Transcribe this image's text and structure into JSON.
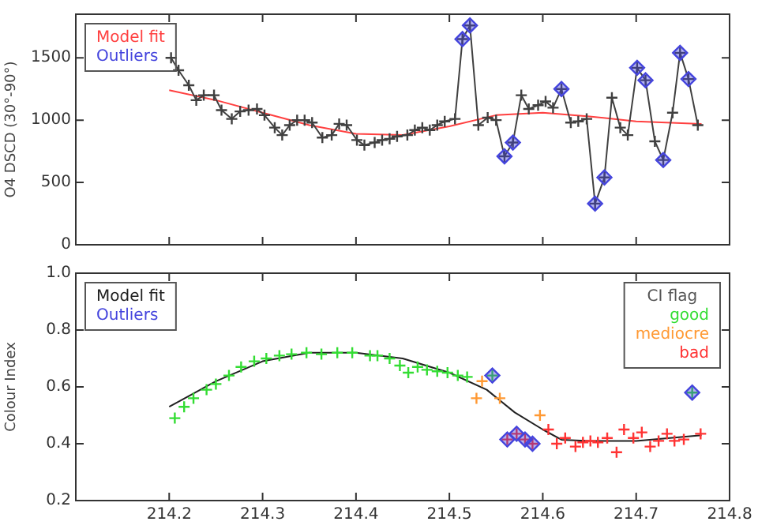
{
  "chart_data": [
    {
      "type": "line",
      "ylabel": "O4 DSCD (30°-90°)",
      "xlim": [
        214.1,
        214.8
      ],
      "xticks": [
        214.2,
        214.3,
        214.4,
        214.5,
        214.6,
        214.7,
        214.8
      ],
      "ylim": [
        0,
        1850
      ],
      "yticks": [
        0,
        500,
        1000,
        1500
      ],
      "tick_labels": "y",
      "legend": "top left",
      "series": [
        {
          "color": "#404040",
          "marker": "cross",
          "x": [
            214.202,
            214.21,
            214.221,
            214.229,
            214.237,
            214.248,
            214.256,
            214.267,
            214.276,
            214.285,
            214.294,
            214.302,
            214.313,
            214.321,
            214.329,
            214.337,
            214.345,
            214.353,
            214.364,
            214.374,
            214.382,
            214.39,
            214.401,
            214.409,
            214.42,
            214.428,
            214.436,
            214.444,
            214.455,
            214.463,
            214.471,
            214.479,
            214.487,
            214.495,
            214.506,
            214.514,
            214.522,
            214.531,
            214.541,
            214.55,
            214.559,
            214.568,
            214.577,
            214.585,
            214.595,
            214.603,
            214.611,
            214.62,
            214.63,
            214.638,
            214.647,
            214.656,
            214.666,
            214.674,
            214.683,
            214.691,
            214.701,
            214.71,
            214.72,
            214.729,
            214.739,
            214.747,
            214.756,
            214.766
          ],
          "values": [
            1500,
            1400,
            1280,
            1160,
            1200,
            1200,
            1080,
            1010,
            1070,
            1080,
            1090,
            1040,
            940,
            880,
            960,
            1000,
            1000,
            980,
            860,
            880,
            970,
            960,
            840,
            800,
            820,
            840,
            850,
            870,
            880,
            920,
            940,
            920,
            960,
            990,
            1010,
            1650,
            1760,
            960,
            1020,
            1000,
            710,
            820,
            1200,
            1090,
            1120,
            1150,
            1100,
            1250,
            980,
            990,
            1010,
            330,
            540,
            1180,
            940,
            880,
            1420,
            1320,
            830,
            680,
            1060,
            1540,
            1330,
            960
          ]
        },
        {
          "name": "Model fit",
          "color": "#ff4040",
          "marker": "none",
          "x": [
            214.2,
            214.25,
            214.3,
            214.35,
            214.4,
            214.45,
            214.5,
            214.55,
            214.6,
            214.65,
            214.7,
            214.77
          ],
          "values": [
            1240,
            1160,
            1060,
            960,
            890,
            880,
            950,
            1040,
            1060,
            1030,
            990,
            970
          ]
        },
        {
          "type": "scatter",
          "name": "Outliers",
          "color": "#4444dd",
          "marker": "diamond",
          "x": [
            214.514,
            214.522,
            214.559,
            214.568,
            214.62,
            214.656,
            214.666,
            214.701,
            214.71,
            214.729,
            214.747,
            214.756
          ],
          "values": [
            1650,
            1760,
            710,
            820,
            1250,
            330,
            540,
            1420,
            1320,
            680,
            1540,
            1330
          ]
        }
      ]
    },
    {
      "type": "scatter",
      "ylabel": "Colour Index",
      "xlim": [
        214.1,
        214.8
      ],
      "xticks": [
        214.2,
        214.3,
        214.4,
        214.5,
        214.6,
        214.7,
        214.8
      ],
      "ylim": [
        0.2,
        1.0
      ],
      "yticks": [
        0.2,
        0.4,
        0.6,
        0.8,
        {
          "value": 1,
          "label": "1.0"
        }
      ],
      "legend": "top right",
      "legend_title": "CI flag",
      "series": [
        {
          "type": "line",
          "name": "Model fit",
          "color": "#202020",
          "marker": "none",
          "x": [
            214.2,
            214.25,
            214.3,
            214.35,
            214.4,
            214.45,
            214.5,
            214.54,
            214.57,
            214.6,
            214.62,
            214.65,
            214.7,
            214.77
          ],
          "values": [
            0.53,
            0.62,
            0.69,
            0.72,
            0.72,
            0.7,
            0.65,
            0.59,
            0.51,
            0.45,
            0.414,
            0.41,
            0.41,
            0.43
          ]
        },
        {
          "name": "Outliers",
          "color": "#4444dd",
          "marker": "diamond",
          "x": [
            214.546,
            214.562,
            214.572,
            214.581,
            214.589,
            214.76
          ],
          "values": [
            0.64,
            0.415,
            0.435,
            0.415,
            0.4,
            0.58
          ]
        },
        {
          "name": "good",
          "color": "#33dd33",
          "marker": "cross",
          "x": [
            214.206,
            214.216,
            214.226,
            214.24,
            214.25,
            214.264,
            214.277,
            214.291,
            214.304,
            214.318,
            214.331,
            214.347,
            214.363,
            214.38,
            214.396,
            214.415,
            214.423,
            214.436,
            214.447,
            214.456,
            214.466,
            214.476,
            214.487,
            214.498,
            214.509,
            214.519,
            214.546,
            214.76
          ],
          "values": [
            0.49,
            0.53,
            0.56,
            0.59,
            0.61,
            0.64,
            0.67,
            0.69,
            0.7,
            0.71,
            0.715,
            0.72,
            0.715,
            0.72,
            0.72,
            0.71,
            0.71,
            0.7,
            0.675,
            0.65,
            0.67,
            0.66,
            0.655,
            0.65,
            0.64,
            0.635,
            0.64,
            0.58
          ]
        },
        {
          "name": "mediocre",
          "color": "#ff9933",
          "marker": "cross",
          "x": [
            214.529,
            214.535,
            214.554,
            214.597
          ],
          "values": [
            0.56,
            0.62,
            0.56,
            0.5
          ]
        },
        {
          "name": "bad",
          "color": "#ff3333",
          "marker": "cross",
          "x": [
            214.562,
            214.572,
            214.581,
            214.589,
            214.606,
            214.615,
            214.624,
            214.635,
            214.643,
            214.651,
            214.659,
            214.669,
            214.679,
            214.687,
            214.697,
            214.706,
            214.715,
            214.724,
            214.733,
            214.741,
            214.751,
            214.769
          ],
          "values": [
            0.415,
            0.435,
            0.415,
            0.4,
            0.45,
            0.4,
            0.42,
            0.39,
            0.405,
            0.41,
            0.405,
            0.42,
            0.37,
            0.45,
            0.42,
            0.44,
            0.39,
            0.41,
            0.435,
            0.41,
            0.415,
            0.435
          ]
        }
      ]
    }
  ]
}
